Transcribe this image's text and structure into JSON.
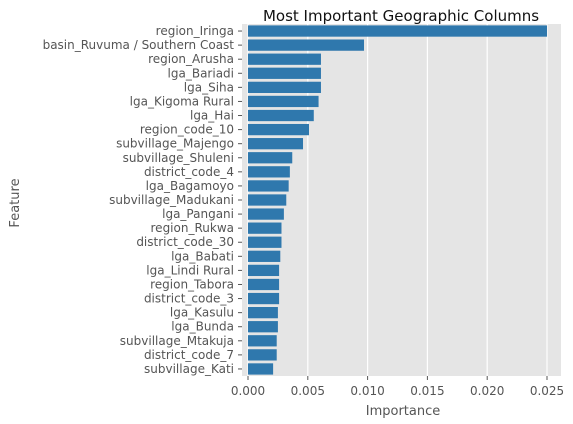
{
  "chart_data": {
    "type": "bar",
    "orientation": "horizontal",
    "title": "Most Important Geographic Columns",
    "xlabel": "Importance",
    "ylabel": "Feature",
    "xlim": [
      0,
      0.026
    ],
    "xticks": [
      0.0,
      0.005,
      0.01,
      0.015,
      0.02,
      0.025
    ],
    "xtick_labels": [
      "0.000",
      "0.005",
      "0.010",
      "0.015",
      "0.020",
      "0.025"
    ],
    "grid": true,
    "categories": [
      "region_Iringa",
      "basin_Ruvuma / Southern Coast",
      "region_Arusha",
      "lga_Bariadi",
      "lga_Siha",
      "lga_Kigoma Rural",
      "lga_Hai",
      "region_code_10",
      "subvillage_Majengo",
      "subvillage_Shuleni",
      "district_code_4",
      "lga_Bagamoyo",
      "subvillage_Madukani",
      "lga_Pangani",
      "region_Rukwa",
      "district_code_30",
      "lga_Babati",
      "lga_Lindi Rural",
      "region_Tabora",
      "district_code_3",
      "lga_Kasulu",
      "lga_Bunda",
      "subvillage_Mtakuja",
      "district_code_7",
      "subvillage_Kati"
    ],
    "values": [
      0.025,
      0.0097,
      0.0061,
      0.0061,
      0.0061,
      0.0059,
      0.0055,
      0.0051,
      0.0046,
      0.0037,
      0.0035,
      0.0034,
      0.0032,
      0.003,
      0.0028,
      0.0028,
      0.0027,
      0.0026,
      0.0026,
      0.0026,
      0.0025,
      0.0025,
      0.0024,
      0.0024,
      0.0021
    ],
    "colors": {
      "bar": "#2f78ad",
      "plot_background": "#e5e5e5",
      "grid": "#ffffff"
    }
  }
}
